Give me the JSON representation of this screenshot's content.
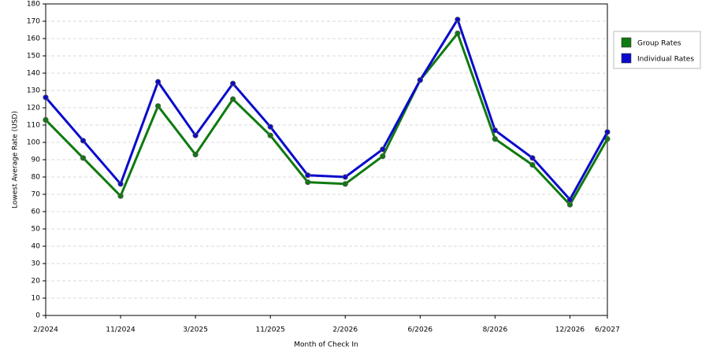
{
  "chart_data": {
    "type": "line",
    "x_label": "Month of Check In",
    "y_label": "Lowest Average Rate (USD)",
    "categories": [
      "2/2024",
      null,
      "11/2024",
      null,
      "3/2025",
      null,
      "11/2025",
      null,
      "2/2026",
      null,
      "6/2026",
      null,
      "8/2026",
      null,
      "12/2026",
      "6/2027"
    ],
    "series": [
      {
        "name": "Group Rates",
        "color": "#0f7a0f",
        "values": [
          113,
          91,
          69,
          121,
          93,
          125,
          104,
          77,
          76,
          92,
          136,
          163,
          102,
          87,
          64,
          102
        ]
      },
      {
        "name": "Individual Rates",
        "color": "#0a0acc",
        "values": [
          126,
          101,
          76,
          135,
          104,
          134,
          109,
          81,
          80,
          96,
          136,
          171,
          107,
          91,
          67,
          106
        ]
      }
    ],
    "ylim": [
      0,
      180
    ],
    "yticks": [
      0,
      10,
      20,
      30,
      40,
      50,
      60,
      70,
      80,
      90,
      100,
      110,
      120,
      130,
      140,
      150,
      160,
      170,
      180
    ],
    "grid": true,
    "legend": "right"
  }
}
